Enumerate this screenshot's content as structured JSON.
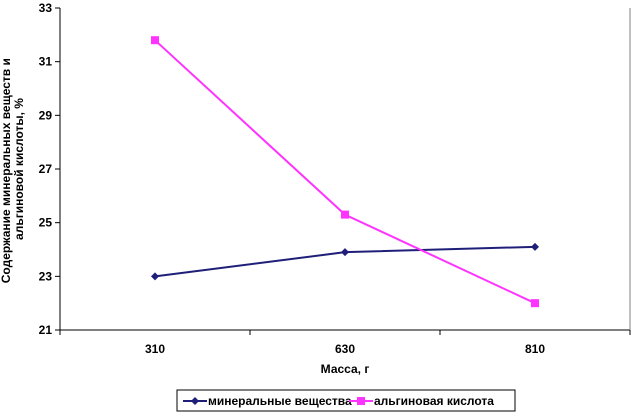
{
  "chart_data": {
    "type": "line",
    "categories": [
      "310",
      "630",
      "810"
    ],
    "xlabel": "Масса, г",
    "ylabel_lines": [
      "Содержание минеральных веществ и",
      "альгиновой кислоты, %"
    ],
    "ylim": [
      21,
      33
    ],
    "yticks": [
      "21",
      "23",
      "25",
      "27",
      "29",
      "31",
      "33"
    ],
    "grid": false,
    "legend_position": "bottom",
    "series": [
      {
        "name": "минеральные вещества",
        "values": [
          23.0,
          23.9,
          24.1
        ],
        "color": "#1f1f7a",
        "marker": "diamond"
      },
      {
        "name": "альгиновая кислота",
        "values": [
          31.8,
          25.3,
          22.0
        ],
        "color": "#ff33ff",
        "marker": "square"
      }
    ]
  }
}
